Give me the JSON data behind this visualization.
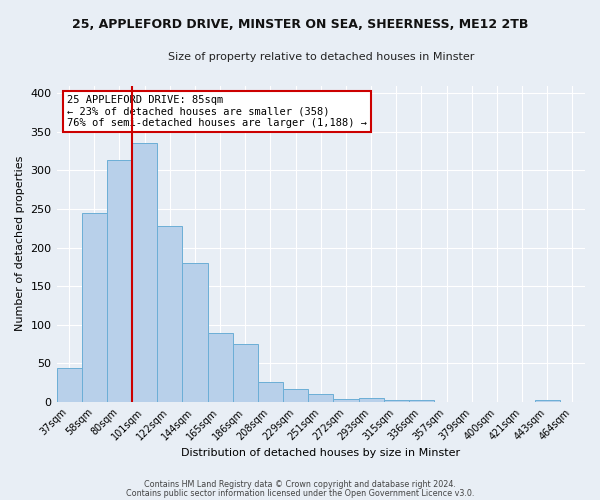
{
  "title_line1": "25, APPLEFORD DRIVE, MINSTER ON SEA, SHEERNESS, ME12 2TB",
  "title_line2": "Size of property relative to detached houses in Minster",
  "xlabel": "Distribution of detached houses by size in Minster",
  "ylabel": "Number of detached properties",
  "bar_labels": [
    "37sqm",
    "58sqm",
    "80sqm",
    "101sqm",
    "122sqm",
    "144sqm",
    "165sqm",
    "186sqm",
    "208sqm",
    "229sqm",
    "251sqm",
    "272sqm",
    "293sqm",
    "315sqm",
    "336sqm",
    "357sqm",
    "379sqm",
    "400sqm",
    "421sqm",
    "443sqm",
    "464sqm"
  ],
  "bar_values": [
    44,
    245,
    313,
    335,
    228,
    180,
    90,
    75,
    26,
    17,
    10,
    4,
    5,
    3,
    3,
    0,
    0,
    0,
    0,
    3,
    0
  ],
  "bar_color": "#b8d0ea",
  "bar_edge_color": "#6baed6",
  "ylim": [
    0,
    410
  ],
  "yticks": [
    0,
    50,
    100,
    150,
    200,
    250,
    300,
    350,
    400
  ],
  "vline_index": 2,
  "vline_color": "#cc0000",
  "annotation_title": "25 APPLEFORD DRIVE: 85sqm",
  "annotation_line2": "← 23% of detached houses are smaller (358)",
  "annotation_line3": "76% of semi-detached houses are larger (1,188) →",
  "annotation_box_color": "#ffffff",
  "annotation_box_edge": "#cc0000",
  "footer_line1": "Contains HM Land Registry data © Crown copyright and database right 2024.",
  "footer_line2": "Contains public sector information licensed under the Open Government Licence v3.0.",
  "bg_color": "#e8eef5",
  "plot_bg_color": "#e8eef5",
  "grid_color": "#ffffff"
}
